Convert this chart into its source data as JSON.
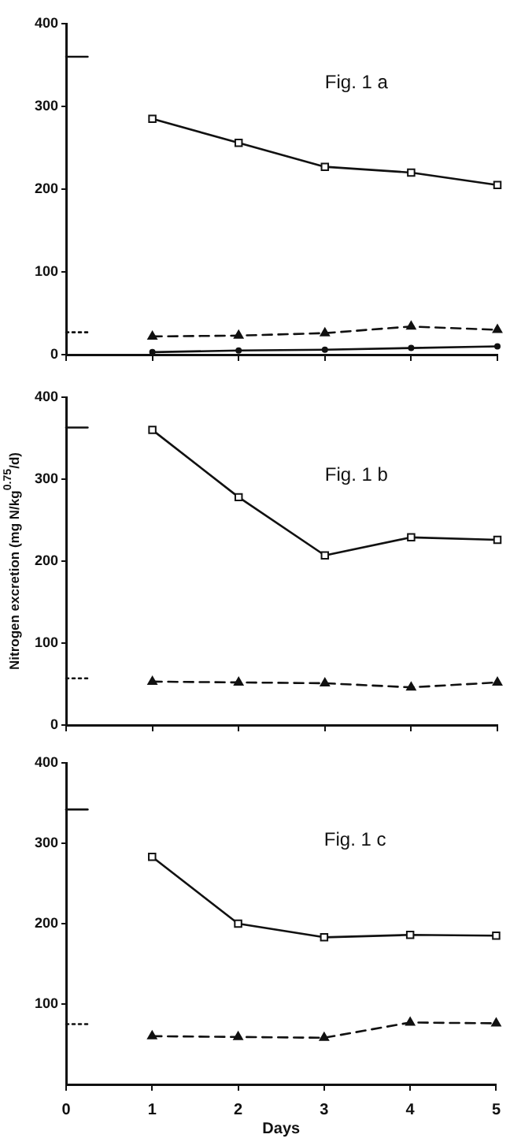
{
  "chart_data": [
    {
      "type": "line",
      "title": "Fig. 1 a",
      "xlim": [
        0,
        5
      ],
      "xticks": [
        0,
        1,
        2,
        3,
        4,
        5
      ],
      "ylim": [
        0,
        400
      ],
      "yticks": [
        0,
        100,
        200,
        300,
        400
      ],
      "tick_labels": "y",
      "grid": false,
      "legend": false,
      "series": [
        {
          "color": "#111111",
          "x": [
            1,
            2,
            3,
            4,
            5
          ],
          "values": [
            285,
            256,
            227,
            220,
            205
          ],
          "marker": "square",
          "line_style": "solid"
        },
        {
          "color": "#111111",
          "x": [
            1,
            2,
            3,
            4,
            5
          ],
          "values": [
            22,
            23,
            26,
            34,
            30
          ],
          "marker": "triangle",
          "line_style": "dashed"
        },
        {
          "color": "#111111",
          "x": [
            1,
            2,
            3,
            4,
            5
          ],
          "values": [
            3,
            5,
            6,
            8,
            10
          ],
          "marker": "circle",
          "line_style": "solid"
        },
        {
          "color": "#111111",
          "x": [
            0,
            0.25
          ],
          "values": [
            360,
            360
          ],
          "marker": "none",
          "line_style": "solid"
        },
        {
          "color": "#111111",
          "x": [
            0,
            0.25
          ],
          "values": [
            27,
            27
          ],
          "marker": "none",
          "line_style": "dotted"
        }
      ]
    },
    {
      "type": "line",
      "title": "Fig. 1 b",
      "ylabel": "Nitrogen excretion (mg N/kg$^{0.75}$/d)",
      "xlim": [
        0,
        5
      ],
      "xticks": [
        0,
        1,
        2,
        3,
        4,
        5
      ],
      "ylim": [
        0,
        400
      ],
      "yticks": [
        0,
        100,
        200,
        300,
        400
      ],
      "tick_labels": "y",
      "grid": false,
      "legend": false,
      "series": [
        {
          "color": "#111111",
          "x": [
            1,
            2,
            3,
            4,
            5
          ],
          "values": [
            360,
            278,
            207,
            229,
            226
          ],
          "marker": "square",
          "line_style": "solid"
        },
        {
          "color": "#111111",
          "x": [
            1,
            2,
            3,
            4,
            5
          ],
          "values": [
            53,
            52,
            51,
            46,
            52
          ],
          "marker": "triangle",
          "line_style": "dashed"
        },
        {
          "color": "#111111",
          "x": [
            0,
            0.25
          ],
          "values": [
            363,
            363
          ],
          "marker": "none",
          "line_style": "solid"
        },
        {
          "color": "#111111",
          "x": [
            0,
            0.25
          ],
          "values": [
            57,
            57
          ],
          "marker": "none",
          "line_style": "dotted"
        }
      ]
    },
    {
      "type": "line",
      "title": "Fig. 1 c",
      "xlabel": "Days",
      "xlim": [
        0,
        5
      ],
      "xticks": [
        0,
        1,
        2,
        3,
        4,
        5
      ],
      "ylim": [
        0,
        400
      ],
      "yticks": [
        100,
        200,
        300,
        400
      ],
      "grid": false,
      "legend": false,
      "series": [
        {
          "color": "#111111",
          "x": [
            1,
            2,
            3,
            4,
            5
          ],
          "values": [
            283,
            200,
            183,
            186,
            185
          ],
          "marker": "square",
          "line_style": "solid"
        },
        {
          "color": "#111111",
          "x": [
            1,
            2,
            3,
            4,
            5
          ],
          "values": [
            60,
            59,
            58,
            77,
            76
          ],
          "marker": "triangle",
          "line_style": "dashed"
        },
        {
          "color": "#111111",
          "x": [
            0,
            0.25
          ],
          "values": [
            342,
            342
          ],
          "marker": "none",
          "line_style": "solid"
        },
        {
          "color": "#111111",
          "x": [
            0,
            0.25
          ],
          "values": [
            75,
            75
          ],
          "marker": "none",
          "line_style": "dotted"
        }
      ]
    }
  ]
}
